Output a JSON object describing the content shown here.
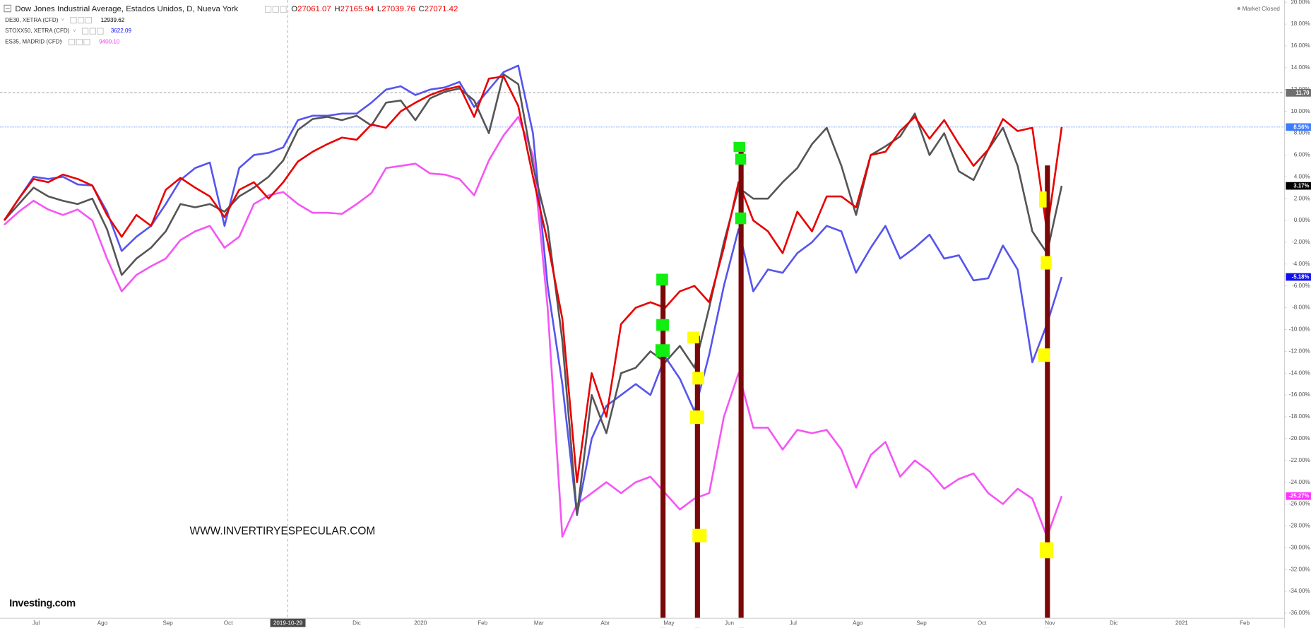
{
  "chart_data": {
    "type": "line",
    "grid": false,
    "legend": {
      "ohlc": [
        {
          "field": "O",
          "value": 27061.07
        },
        {
          "field": "H",
          "value": 27165.94
        },
        {
          "field": "L",
          "value": 27039.76
        },
        {
          "field": "C",
          "value": 27071.42
        }
      ]
    },
    "status": "Market Closed",
    "watermark": "WWW.INVERTIRYESPECULAR.COM",
    "logo": "Investing.com",
    "x_labels": [
      "Jul",
      "Ago",
      "Sep",
      "Oct",
      "2019-10-29",
      "Dic",
      "2020",
      "Feb",
      "Mar",
      "Abr",
      "May",
      "Jun",
      "Jul",
      "Ago",
      "Sep",
      "Oct",
      "Nov",
      "Dic",
      "2021",
      "Feb"
    ],
    "ylim": [
      -37.2,
      20.2
    ],
    "yticks": [
      {
        "value": 20,
        "label": "20.00%"
      },
      {
        "value": 18,
        "label": "18.00%"
      },
      {
        "value": 16,
        "label": "16.00%"
      },
      {
        "value": 14,
        "label": "14.00%"
      },
      {
        "value": 12,
        "label": "12.00%"
      },
      {
        "value": 10,
        "label": "10.00%"
      },
      {
        "value": 8,
        "label": "8.00%"
      },
      {
        "value": 6,
        "label": "6.00%"
      },
      {
        "value": 4,
        "label": "4.00%"
      },
      {
        "value": 2,
        "label": "2.00%"
      },
      {
        "value": 0,
        "label": "0.00%"
      },
      {
        "value": -2,
        "label": "-2.00%"
      },
      {
        "value": -4,
        "label": "-4.00%"
      },
      {
        "value": -6,
        "label": "-6.00%"
      },
      {
        "value": -8,
        "label": "-8.00%"
      },
      {
        "value": -10,
        "label": "-10.00%"
      },
      {
        "value": -12,
        "label": "-12.00%"
      },
      {
        "value": -14,
        "label": "-14.00%"
      },
      {
        "value": -16,
        "label": "-16.00%"
      },
      {
        "value": -18,
        "label": "-18.00%"
      },
      {
        "value": -20,
        "label": "-20.00%"
      },
      {
        "value": -22,
        "label": "-22.00%"
      },
      {
        "value": -24,
        "label": "-24.00%"
      },
      {
        "value": -26,
        "label": "-26.00%"
      },
      {
        "value": -28,
        "label": "-28.00%"
      },
      {
        "value": -30,
        "label": "-30.00%"
      },
      {
        "value": -32,
        "label": "-32.00%"
      },
      {
        "value": -34,
        "label": "-34.00%"
      },
      {
        "value": -36,
        "label": "-36.00%"
      }
    ],
    "price_tags": [
      {
        "value": 11.7,
        "label": "11.70",
        "color": "#6f6f6f"
      },
      {
        "value": 8.56,
        "label": "8.56%",
        "color": "#3d7cff"
      },
      {
        "value": 3.17,
        "label": "3.17%",
        "color": "#000000"
      },
      {
        "value": -5.18,
        "label": "-5.18%",
        "color": "#1010ee"
      },
      {
        "value": -25.27,
        "label": "-25.27%",
        "color": "#ff33ff"
      }
    ],
    "series": [
      {
        "name": "Dow Jones Industrial Average, Estados Unidos, D, Nueva York",
        "color": "#e80000",
        "values": [
          0,
          2,
          3.8,
          3.5,
          4.2,
          3.8,
          3.2,
          0.5,
          -1.5,
          0.5,
          -0.5,
          2.8,
          3.9,
          3,
          2.2,
          0.3,
          2.8,
          3.5,
          2,
          3.5,
          5.4,
          6.3,
          7,
          7.6,
          7.4,
          8.8,
          8.5,
          10,
          10.8,
          11.5,
          12,
          12.3,
          9.5,
          13,
          13.2,
          10.5,
          4,
          -2,
          -9,
          -24,
          -14,
          -18,
          -9.5,
          -8,
          -7.5,
          -8,
          -6.5,
          -6,
          -7.5,
          -2.5,
          3.5,
          0,
          -1,
          -3,
          0.8,
          -1,
          2.2,
          2.2,
          1.2,
          6,
          6.3,
          8.2,
          9.5,
          7.5,
          9.2,
          7,
          5,
          6.5,
          9.3,
          8.2,
          8.5,
          -1,
          8.56
        ]
      },
      {
        "name": "DE30, XETRA (CFD)",
        "color": "#555555",
        "last": 12939.62,
        "last_color": "#000000",
        "values": [
          0,
          1.5,
          3,
          2.2,
          1.8,
          1.5,
          2,
          -0.8,
          -5,
          -3.5,
          -2.5,
          -1,
          1.5,
          1.2,
          1.5,
          0.8,
          2.2,
          3,
          4,
          5.5,
          8.3,
          9.3,
          9.5,
          9.2,
          9.6,
          8.7,
          10.8,
          11,
          9.2,
          11.2,
          11.8,
          12.1,
          11,
          8,
          13.4,
          12.5,
          5,
          -0.5,
          -11,
          -27,
          -16,
          -19.5,
          -14,
          -13.5,
          -12,
          -13,
          -11.5,
          -13.5,
          -8,
          -2,
          3,
          2,
          2,
          3.5,
          4.8,
          7,
          8.5,
          5,
          0.5,
          6,
          6.8,
          7.7,
          9.8,
          6,
          8,
          4.5,
          3.7,
          6.5,
          8.5,
          5,
          -1,
          -3,
          3.17
        ]
      },
      {
        "name": "STOXX50, XETRA (CFD)",
        "color": "#5555ee",
        "last": 3622.09,
        "last_color": "#1010ee",
        "values": [
          0,
          2,
          4,
          3.8,
          4,
          3.3,
          3.2,
          0.8,
          -2.8,
          -1.5,
          -0.5,
          1.5,
          3.7,
          4.8,
          5.3,
          -0.5,
          4.8,
          6,
          6.2,
          6.7,
          9.2,
          9.6,
          9.6,
          9.8,
          9.8,
          10.8,
          12,
          12.3,
          11.5,
          12,
          12.2,
          12.7,
          10.4,
          12,
          13.6,
          14.2,
          8,
          -6,
          -15,
          -27,
          -20,
          -17,
          -16,
          -15,
          -16,
          -12.5,
          -14.5,
          -17.5,
          -12.3,
          -6,
          -0.8,
          -6.5,
          -4.5,
          -4.8,
          -3,
          -2,
          -0.5,
          -1,
          -4.8,
          -2.5,
          -0.5,
          -3.5,
          -2.5,
          -1.3,
          -3.5,
          -3.2,
          -5.5,
          -5.3,
          -2.3,
          -4.5,
          -13,
          -9.5,
          -5.18
        ]
      },
      {
        "name": "ES35, MADRID (CFD)",
        "color": "#f555f5",
        "last": {
          "value": 9400.1,
          "label": "9400.10"
        },
        "last_color": "#ff33ff",
        "values": [
          -0.4,
          0.8,
          1.8,
          1,
          0.5,
          1,
          0,
          -3.5,
          -6.5,
          -5,
          -4.2,
          -3.5,
          -1.8,
          -1,
          -0.5,
          -2.5,
          -1.5,
          1.5,
          2.3,
          2.6,
          1.5,
          0.7,
          0.7,
          0.6,
          1.5,
          2.5,
          4.8,
          5,
          5.2,
          4.3,
          4.2,
          3.8,
          2.3,
          5.5,
          7.8,
          9.5,
          6,
          -8,
          -29,
          -26,
          -25,
          -24,
          -25,
          -24,
          -23.5,
          -25,
          -26.5,
          -25.5,
          -25,
          -18,
          -14,
          -19,
          -19,
          -21,
          -19.2,
          -19.5,
          -19.2,
          -21,
          -24.5,
          -21.5,
          -20.3,
          -23.5,
          -22,
          -23,
          -24.6,
          -23.7,
          -23.2,
          -25,
          -26,
          -24.6,
          -25.5,
          -29,
          -25.27
        ]
      }
    ]
  }
}
